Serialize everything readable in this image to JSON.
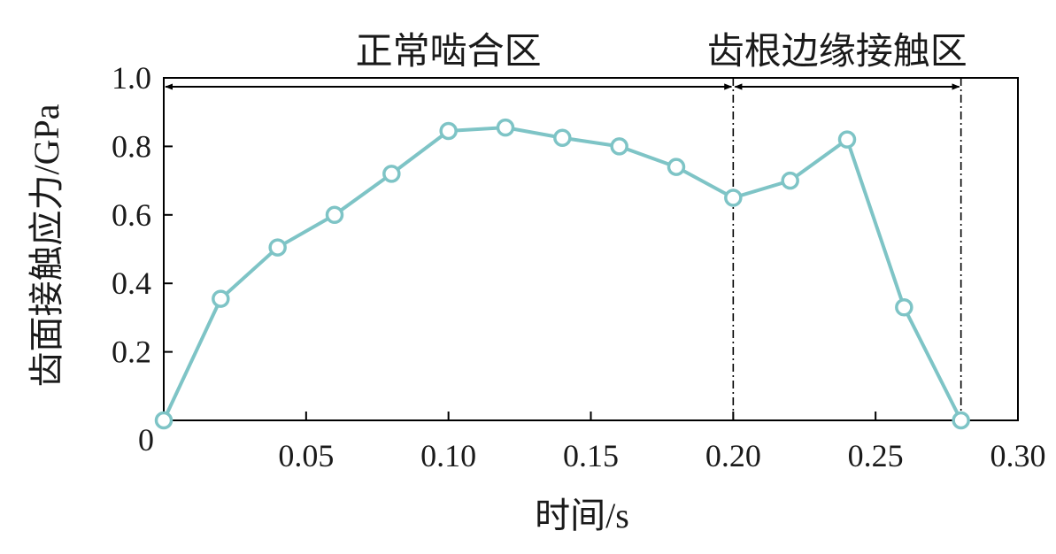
{
  "chart_data": {
    "type": "line",
    "xlabel": "时间/s",
    "ylabel": "齿面接触应力/GPa",
    "xlim": [
      0,
      0.3
    ],
    "ylim": [
      0,
      1.0
    ],
    "x_ticks": [
      0.05,
      0.1,
      0.15,
      0.2,
      0.25,
      0.3
    ],
    "x_tick_labels": [
      "0.05",
      "0.10",
      "0.15",
      "0.20",
      "0.25",
      "0.30"
    ],
    "y_ticks": [
      0,
      0.2,
      0.4,
      0.6,
      0.8,
      1.0
    ],
    "y_tick_labels": [
      "0",
      "0.2",
      "0.4",
      "0.6",
      "0.8",
      "1.0"
    ],
    "grid": false,
    "series": [
      {
        "color": "#7ec4c6",
        "marker": "open-circle",
        "x": [
          0,
          0.02,
          0.04,
          0.06,
          0.08,
          0.1,
          0.12,
          0.14,
          0.16,
          0.18,
          0.2,
          0.22,
          0.24,
          0.26,
          0.28
        ],
        "y": [
          0,
          0.355,
          0.505,
          0.6,
          0.72,
          0.845,
          0.855,
          0.825,
          0.8,
          0.74,
          0.65,
          0.7,
          0.82,
          0.33,
          0
        ]
      }
    ],
    "regions": [
      {
        "label": "正常啮合区",
        "x_start": 0,
        "x_end": 0.2
      },
      {
        "label": "齿根边缘接触区",
        "x_start": 0.2,
        "x_end": 0.28
      }
    ],
    "region_boundaries": [
      0.2,
      0.28
    ]
  }
}
